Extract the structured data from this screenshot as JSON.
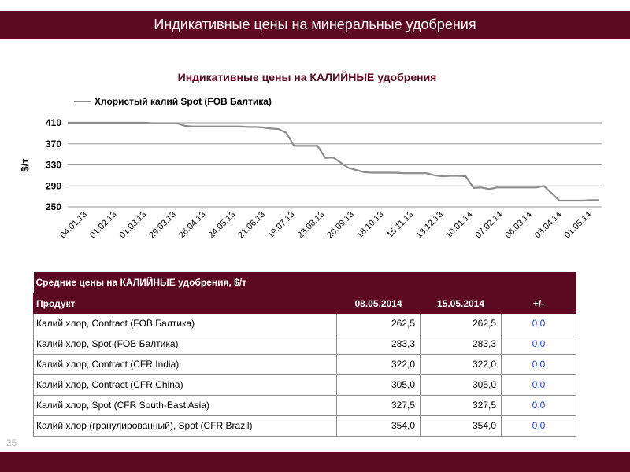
{
  "page": {
    "title": "Индикативные цены на минеральные удобрения",
    "page_number": "25"
  },
  "chart_data": {
    "type": "line",
    "title": "Индикативные цены на КАЛИЙНЫЕ удобрения",
    "ylabel": "$/т",
    "xlabel": "",
    "ylim": [
      250,
      410
    ],
    "yticks": [
      250,
      290,
      330,
      370,
      410
    ],
    "grid": true,
    "legend_position": "top-left",
    "x_tick_labels": [
      "04.01.13",
      "01.02.13",
      "01.03.13",
      "29.03.13",
      "26.04.13",
      "24.05.13",
      "21.06.13",
      "19.07.13",
      "23.08.13",
      "20.09.13",
      "18.10.13",
      "15.11.13",
      "13.12.13",
      "10.01.14",
      "07.02.14",
      "06.03.14",
      "03.04.14",
      "01.05.14"
    ],
    "series": [
      {
        "name": "Хлористый калий Spot (FOB Балтика)",
        "color": "#8c8c8c",
        "values": [
          412,
          411,
          411,
          410,
          410,
          410,
          410,
          410,
          410,
          410,
          410,
          409,
          409,
          409,
          409,
          404,
          403,
          403,
          403,
          403,
          403,
          403,
          403,
          402,
          402,
          401,
          399,
          398,
          391,
          366,
          366,
          366,
          366,
          343,
          344,
          334,
          324,
          320,
          316,
          315,
          315,
          315,
          315,
          314,
          314,
          314,
          314,
          310,
          308,
          309,
          309,
          308,
          286,
          287,
          284,
          287,
          287,
          287,
          287,
          287,
          287,
          290,
          276,
          262,
          262,
          262,
          262,
          263,
          263
        ]
      }
    ]
  },
  "table": {
    "caption": "Средние цены на КАЛИЙНЫЕ удобрения, $/т",
    "headers": [
      "Продукт",
      "08.05.2014",
      "15.05.2014",
      "+/-"
    ],
    "rows": [
      [
        "Калий хлор, Contract (FOB Балтика)",
        "262,5",
        "262,5",
        "0,0"
      ],
      [
        "Калий хлор, Spot (FOB Балтика)",
        "283,3",
        "283,3",
        "0,0"
      ],
      [
        "Калий хлор, Contract (CFR India)",
        "322,0",
        "322,0",
        "0,0"
      ],
      [
        "Калий хлор, Contract (CFR China)",
        "305,0",
        "305,0",
        "0,0"
      ],
      [
        "Калий хлор, Spot (CFR South-East Asia)",
        "327,5",
        "327,5",
        "0,0"
      ],
      [
        "Калий хлор (гранулированный), Spot (CFR Brazil)",
        "354,0",
        "354,0",
        "0,0"
      ]
    ]
  }
}
